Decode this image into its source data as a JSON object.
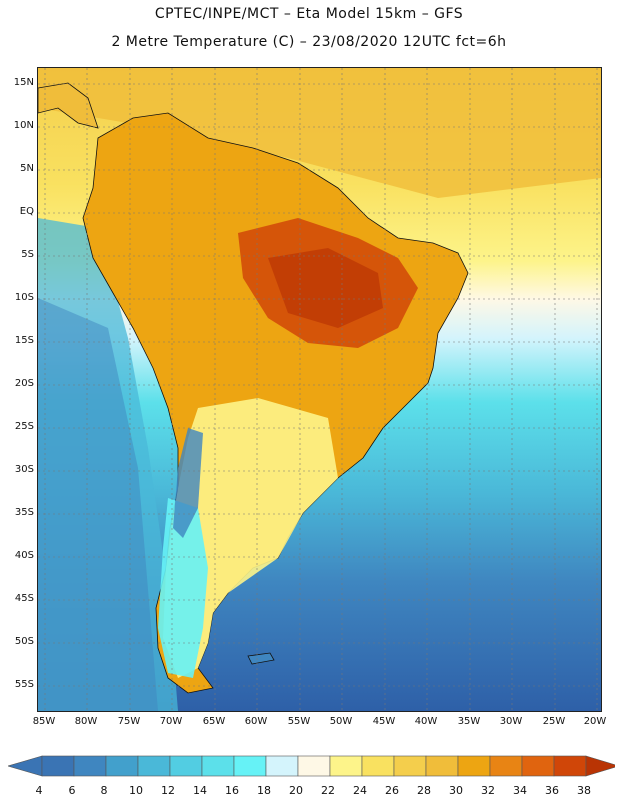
{
  "header": {
    "title_line1": "CPTEC/INPE/MCT  –   Eta Model 15km  –  GFS",
    "title_line2": "2 Metre Temperature (C)  –  23/08/2020 12UTC fct=6h"
  },
  "axes": {
    "lat_labels": [
      "15N",
      "10N",
      "5N",
      "EQ",
      "5S",
      "10S",
      "15S",
      "20S",
      "25S",
      "30S",
      "35S",
      "40S",
      "45S",
      "50S",
      "55S"
    ],
    "lon_labels": [
      "85W",
      "80W",
      "75W",
      "70W",
      "65W",
      "60W",
      "55W",
      "50W",
      "45W",
      "40W",
      "35W",
      "30W",
      "25W",
      "20W"
    ]
  },
  "colorbar": {
    "labels": [
      "4",
      "6",
      "8",
      "10",
      "12",
      "14",
      "16",
      "18",
      "20",
      "22",
      "24",
      "26",
      "28",
      "30",
      "32",
      "34",
      "36",
      "38"
    ],
    "colors": [
      "#3a74b4",
      "#3f86c0",
      "#42a0cc",
      "#4ab8d8",
      "#52cde2",
      "#5ce0ea",
      "#66f2f6",
      "#d4f4fc",
      "#fef8e6",
      "#fdf48a",
      "#f9e160",
      "#f4ce4c",
      "#f0bd3a",
      "#eda512",
      "#e88414",
      "#e0640f",
      "#d04608",
      "#b93404"
    ]
  }
}
